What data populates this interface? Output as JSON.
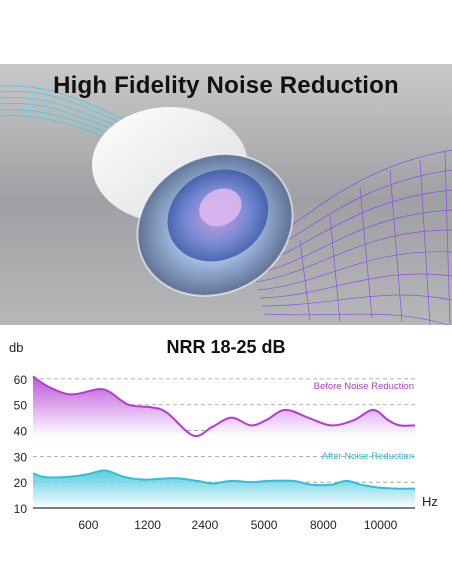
{
  "hero": {
    "title": "High Fidelity Noise Reduction"
  },
  "colors": {
    "before": "#b23bd6",
    "after": "#2fc0d8",
    "wave_violet": "#8a3cf0",
    "wave_cyan": "#27d2ee"
  },
  "chart_data": {
    "type": "area",
    "title": "NRR 18-25 dB",
    "ylabel": "db",
    "xlabel": "Hz",
    "ylim": [
      10,
      65
    ],
    "yticks": [
      10,
      20,
      30,
      40,
      50,
      60
    ],
    "x_tick_labels": [
      "600",
      "1200",
      "2400",
      "5000",
      "8000",
      "10000"
    ],
    "grid": "dashed horizontal",
    "series": [
      {
        "name": "Before Noise Reduction",
        "points": [
          [
            0,
            61
          ],
          [
            0.04,
            57
          ],
          [
            0.1,
            54
          ],
          [
            0.17,
            56
          ],
          [
            0.2,
            55
          ],
          [
            0.25,
            50
          ],
          [
            0.31,
            49
          ],
          [
            0.35,
            47
          ],
          [
            0.42,
            38
          ],
          [
            0.47,
            41.5
          ],
          [
            0.52,
            45
          ],
          [
            0.57,
            42
          ],
          [
            0.61,
            44
          ],
          [
            0.66,
            48
          ],
          [
            0.72,
            45
          ],
          [
            0.78,
            42
          ],
          [
            0.84,
            44
          ],
          [
            0.89,
            48
          ],
          [
            0.93,
            44
          ],
          [
            0.96,
            42
          ],
          [
            1,
            42
          ]
        ]
      },
      {
        "name": "After Noise Reduction",
        "points": [
          [
            0,
            23.5
          ],
          [
            0.03,
            22
          ],
          [
            0.09,
            22
          ],
          [
            0.14,
            23
          ],
          [
            0.19,
            24.5
          ],
          [
            0.24,
            22
          ],
          [
            0.29,
            21
          ],
          [
            0.37,
            21.5
          ],
          [
            0.43,
            20.5
          ],
          [
            0.47,
            19.5
          ],
          [
            0.52,
            20.5
          ],
          [
            0.57,
            20
          ],
          [
            0.62,
            20.5
          ],
          [
            0.68,
            20.5
          ],
          [
            0.73,
            19
          ],
          [
            0.78,
            19
          ],
          [
            0.82,
            20.5
          ],
          [
            0.86,
            19
          ],
          [
            0.9,
            18
          ],
          [
            0.95,
            17.5
          ],
          [
            1,
            17.5
          ]
        ]
      }
    ]
  }
}
